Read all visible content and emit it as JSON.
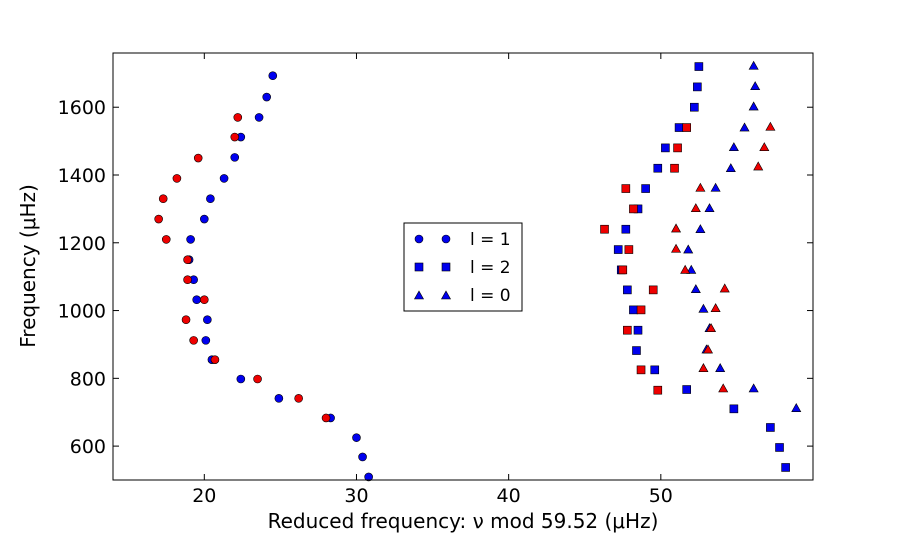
{
  "chart_data": {
    "type": "scatter",
    "title": "",
    "xlabel": "Reduced frequency: ν mod 59.52 (μHz)",
    "ylabel": "Frequency (μHz)",
    "xlim": [
      14,
      60
    ],
    "ylim": [
      500,
      1760
    ],
    "xticks": [
      20,
      30,
      40,
      50
    ],
    "yticks": [
      600,
      800,
      1000,
      1200,
      1400,
      1600
    ],
    "xtick_labels": [
      "20",
      "30",
      "40",
      "50"
    ],
    "ytick_labels": [
      "600",
      "800",
      "1000",
      "1200",
      "1400",
      "1600"
    ],
    "legend_position": "center",
    "legend": [
      {
        "label": "l = 1",
        "marker": "circle"
      },
      {
        "label": "l = 2",
        "marker": "square"
      },
      {
        "label": "l = 0",
        "marker": "triangle"
      }
    ],
    "colors": {
      "series_a": "#0000ee",
      "series_b": "#ee0000"
    },
    "series": [
      {
        "name": "l = 1 (blue)",
        "marker": "circle",
        "color": "#0000ee",
        "points": [
          [
            30.8,
            509
          ],
          [
            30.4,
            568
          ],
          [
            30.0,
            625
          ],
          [
            28.3,
            683
          ],
          [
            24.9,
            741
          ],
          [
            22.4,
            798
          ],
          [
            20.5,
            855
          ],
          [
            20.1,
            912
          ],
          [
            20.2,
            973
          ],
          [
            19.5,
            1032
          ],
          [
            19.3,
            1091
          ],
          [
            19.0,
            1150
          ],
          [
            19.1,
            1210
          ],
          [
            20.0,
            1270
          ],
          [
            20.4,
            1330
          ],
          [
            21.3,
            1390
          ],
          [
            22.0,
            1452
          ],
          [
            22.4,
            1512
          ],
          [
            23.6,
            1570
          ],
          [
            24.1,
            1630
          ],
          [
            24.5,
            1693
          ]
        ]
      },
      {
        "name": "l = 1 (red)",
        "marker": "circle",
        "color": "#ee0000",
        "points": [
          [
            28.0,
            683
          ],
          [
            26.2,
            741
          ],
          [
            23.5,
            798
          ],
          [
            20.7,
            855
          ],
          [
            19.3,
            912
          ],
          [
            18.8,
            973
          ],
          [
            20.0,
            1032
          ],
          [
            18.9,
            1091
          ],
          [
            18.9,
            1150
          ],
          [
            17.5,
            1210
          ],
          [
            17.0,
            1270
          ],
          [
            17.3,
            1330
          ],
          [
            18.2,
            1390
          ],
          [
            19.6,
            1450
          ],
          [
            22.0,
            1512
          ],
          [
            22.2,
            1570
          ]
        ]
      },
      {
        "name": "l = 2 (blue)",
        "marker": "square",
        "color": "#0000ee",
        "points": [
          [
            58.2,
            537
          ],
          [
            57.8,
            596
          ],
          [
            57.2,
            655
          ],
          [
            54.8,
            710
          ],
          [
            51.7,
            767
          ],
          [
            49.6,
            825
          ],
          [
            48.4,
            882
          ],
          [
            48.5,
            942
          ],
          [
            48.2,
            1002
          ],
          [
            47.8,
            1061
          ],
          [
            47.4,
            1120
          ],
          [
            47.2,
            1180
          ],
          [
            47.7,
            1240
          ],
          [
            48.5,
            1300
          ],
          [
            49.0,
            1360
          ],
          [
            49.8,
            1420
          ],
          [
            50.3,
            1480
          ],
          [
            51.2,
            1540
          ],
          [
            52.2,
            1600
          ],
          [
            52.4,
            1660
          ],
          [
            52.5,
            1720
          ]
        ]
      },
      {
        "name": "l = 2 (red)",
        "marker": "square",
        "color": "#ee0000",
        "points": [
          [
            49.8,
            765
          ],
          [
            48.7,
            825
          ],
          [
            47.8,
            942
          ],
          [
            48.7,
            1002
          ],
          [
            49.5,
            1061
          ],
          [
            47.5,
            1120
          ],
          [
            47.9,
            1180
          ],
          [
            46.3,
            1240
          ],
          [
            48.2,
            1300
          ],
          [
            47.7,
            1360
          ],
          [
            50.9,
            1420
          ],
          [
            51.1,
            1480
          ],
          [
            51.7,
            1540
          ]
        ]
      },
      {
        "name": "l = 0 (blue)",
        "marker": "triangle",
        "color": "#0000ee",
        "points": [
          [
            58.9,
            712
          ],
          [
            56.1,
            770
          ],
          [
            53.9,
            830
          ],
          [
            53.0,
            885
          ],
          [
            53.2,
            948
          ],
          [
            52.8,
            1005
          ],
          [
            52.3,
            1063
          ],
          [
            52.0,
            1120
          ],
          [
            51.8,
            1180
          ],
          [
            52.6,
            1240
          ],
          [
            53.2,
            1302
          ],
          [
            53.6,
            1362
          ],
          [
            54.6,
            1420
          ],
          [
            54.8,
            1482
          ],
          [
            55.5,
            1540
          ],
          [
            56.1,
            1602
          ],
          [
            56.2,
            1662
          ],
          [
            56.1,
            1722
          ]
        ]
      },
      {
        "name": "l = 0 (red)",
        "marker": "triangle",
        "color": "#ee0000",
        "points": [
          [
            54.1,
            770
          ],
          [
            52.8,
            830
          ],
          [
            53.1,
            885
          ],
          [
            53.3,
            948
          ],
          [
            53.6,
            1007
          ],
          [
            54.2,
            1065
          ],
          [
            51.6,
            1120
          ],
          [
            51.0,
            1182
          ],
          [
            51.0,
            1242
          ],
          [
            52.3,
            1302
          ],
          [
            52.6,
            1362
          ],
          [
            56.4,
            1425
          ],
          [
            56.8,
            1482
          ],
          [
            57.2,
            1542
          ]
        ]
      }
    ]
  }
}
